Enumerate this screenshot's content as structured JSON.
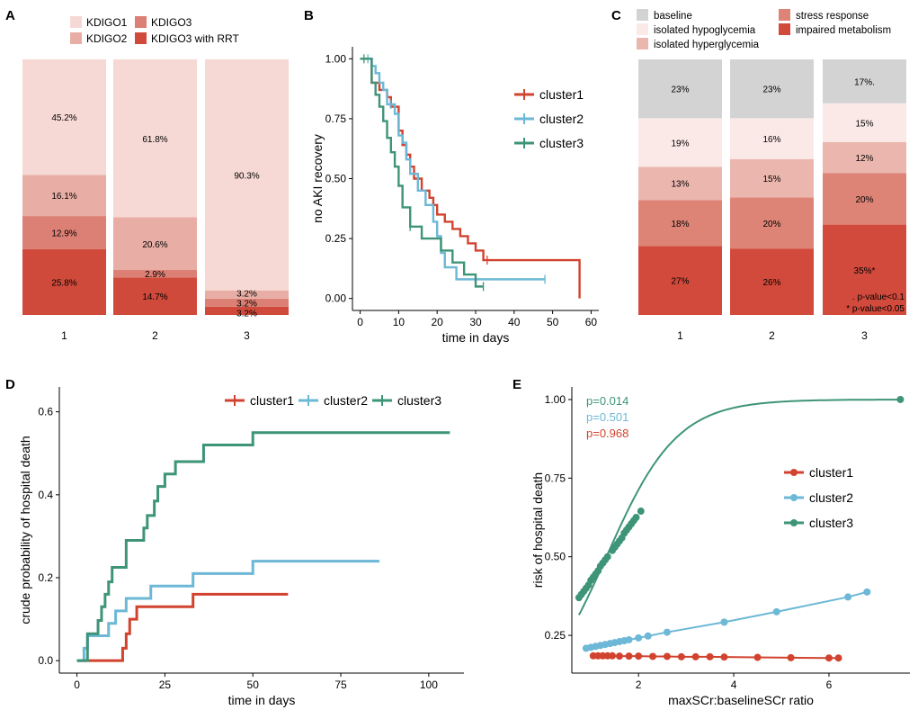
{
  "colors": {
    "kdigo1": "#f6d8d4",
    "kdigo2": "#e8aea5",
    "kdigo3": "#dc7f74",
    "kdigo3_rrt": "#d04a3b",
    "baseline": "#d3d3d3",
    "hypoglycemia": "#fbe9e7",
    "hyperglycemia": "#ebb6ae",
    "stress": "#dd8477",
    "impaired": "#d24a3b",
    "cluster1": "#d2432f",
    "cluster2": "#6cb8d6",
    "cluster3": "#3e9478"
  },
  "chart_data": [
    {
      "panel": "A",
      "type": "bar",
      "stacked": true,
      "categories": [
        "1",
        "2",
        "3"
      ],
      "series": [
        {
          "name": "KDIGO3 with RRT",
          "color_key": "kdigo3_rrt",
          "values": [
            25.8,
            14.7,
            3.2
          ],
          "labels": [
            "25.8%",
            "14.7%",
            "3.2%"
          ]
        },
        {
          "name": "KDIGO3",
          "color_key": "kdigo3",
          "values": [
            12.9,
            2.9,
            3.2
          ],
          "labels": [
            "12.9%",
            "2.9%",
            "3.2%"
          ]
        },
        {
          "name": "KDIGO2",
          "color_key": "kdigo2",
          "values": [
            16.1,
            20.6,
            3.2
          ],
          "labels": [
            "16.1%",
            "20.6%",
            "3.2%"
          ]
        },
        {
          "name": "KDIGO1",
          "color_key": "kdigo1",
          "values": [
            45.2,
            61.8,
            90.3
          ],
          "labels": [
            "45.2%",
            "61.8%",
            "90.3%"
          ]
        }
      ],
      "legend": [
        "KDIGO1",
        "KDIGO2",
        "KDIGO3",
        "KDIGO3 with RRT"
      ]
    },
    {
      "panel": "B",
      "type": "line",
      "step": true,
      "xlabel": "time in days",
      "ylabel": "no AKI recovery",
      "xlim": [
        -2,
        62
      ],
      "ylim": [
        -0.05,
        1.05
      ],
      "xticks": [
        0,
        10,
        20,
        30,
        40,
        50,
        60
      ],
      "yticks": [
        0,
        0.25,
        0.5,
        0.75,
        1.0
      ],
      "ytick_labels": [
        "0.00",
        "0.25",
        "0.50",
        "0.75",
        "1.00"
      ],
      "series": [
        {
          "name": "cluster1",
          "color_key": "cluster1",
          "x": [
            0,
            3,
            5,
            7,
            8,
            10,
            11,
            12,
            13,
            14,
            16,
            18,
            19,
            20,
            22,
            24,
            26,
            28,
            30,
            32,
            34,
            57,
            57
          ],
          "y": [
            1.0,
            0.9,
            0.87,
            0.84,
            0.8,
            0.7,
            0.64,
            0.6,
            0.55,
            0.5,
            0.45,
            0.42,
            0.39,
            0.35,
            0.32,
            0.29,
            0.26,
            0.23,
            0.2,
            0.16,
            0.16,
            0.16,
            0.0
          ],
          "censor": [
            33
          ]
        },
        {
          "name": "cluster2",
          "color_key": "cluster2",
          "x": [
            0,
            3,
            4,
            5,
            6,
            7,
            9,
            10,
            11,
            12,
            13,
            15,
            17,
            19,
            20,
            21,
            22,
            25,
            35,
            48
          ],
          "y": [
            1.0,
            0.97,
            0.94,
            0.9,
            0.87,
            0.81,
            0.77,
            0.68,
            0.65,
            0.58,
            0.52,
            0.45,
            0.39,
            0.32,
            0.26,
            0.19,
            0.13,
            0.08,
            0.08,
            0.08
          ],
          "censor": [
            2,
            8,
            48
          ]
        },
        {
          "name": "cluster3",
          "color_key": "cluster3",
          "x": [
            0,
            3,
            4,
            5,
            6,
            7,
            8,
            9,
            10,
            11,
            13,
            16,
            19,
            21,
            24,
            27,
            30,
            32
          ],
          "y": [
            1.0,
            0.9,
            0.85,
            0.8,
            0.74,
            0.67,
            0.61,
            0.55,
            0.47,
            0.38,
            0.3,
            0.25,
            0.25,
            0.2,
            0.15,
            0.1,
            0.05,
            0.05
          ],
          "censor": [
            1,
            13,
            32
          ]
        }
      ],
      "legend": [
        "cluster1",
        "cluster2",
        "cluster3"
      ]
    },
    {
      "panel": "C",
      "type": "bar",
      "stacked": true,
      "categories": [
        "1",
        "2",
        "3"
      ],
      "series": [
        {
          "name": "impaired metabolism",
          "color_key": "impaired",
          "values": [
            27,
            26,
            35
          ],
          "labels": [
            "27%",
            "26%",
            "35%*"
          ]
        },
        {
          "name": "stress response",
          "color_key": "stress",
          "values": [
            18,
            20,
            20
          ],
          "labels": [
            "18%",
            "20%",
            "20%"
          ]
        },
        {
          "name": "isolated hyperglycemia",
          "color_key": "hyperglycemia",
          "values": [
            13,
            15,
            12
          ],
          "labels": [
            "13%",
            "15%",
            "12%"
          ]
        },
        {
          "name": "isolated hypoglycemia",
          "color_key": "hypoglycemia",
          "values": [
            19,
            16,
            15
          ],
          "labels": [
            "19%",
            "16%",
            "15%"
          ]
        },
        {
          "name": "baseline",
          "color_key": "baseline",
          "values": [
            23,
            23,
            17
          ],
          "labels": [
            "23%",
            "23%",
            "17%."
          ]
        }
      ],
      "legend": [
        "baseline",
        "isolated hypoglycemia",
        "isolated hyperglycemia",
        "stress response",
        "impaired metabolism"
      ],
      "annotations": [
        ". p-value<0.1",
        "* p-value<0.05"
      ]
    },
    {
      "panel": "D",
      "type": "line",
      "step": true,
      "xlabel": "time in days",
      "ylabel": "crude probability of hospital death",
      "xlim": [
        -5,
        110
      ],
      "ylim": [
        -0.03,
        0.66
      ],
      "xticks": [
        0,
        25,
        50,
        75,
        100
      ],
      "yticks": [
        0,
        0.2,
        0.4,
        0.6
      ],
      "ytick_labels": [
        "0.0",
        "0.2",
        "0.4",
        "0.6"
      ],
      "series": [
        {
          "name": "cluster1",
          "color_key": "cluster1",
          "x": [
            0,
            13,
            14,
            15,
            17,
            33,
            60
          ],
          "y": [
            0,
            0.03,
            0.065,
            0.1,
            0.13,
            0.16,
            0.16
          ]
        },
        {
          "name": "cluster2",
          "color_key": "cluster2",
          "x": [
            0,
            2,
            3,
            5,
            9,
            11,
            14,
            21,
            33,
            50,
            86
          ],
          "y": [
            0,
            0.03,
            0.06,
            0.06,
            0.09,
            0.12,
            0.15,
            0.18,
            0.21,
            0.24,
            0.24
          ]
        },
        {
          "name": "cluster3",
          "color_key": "cluster3",
          "x": [
            0,
            3,
            5,
            6,
            7,
            8,
            9,
            10,
            11,
            14,
            18,
            19,
            20,
            21,
            22,
            23,
            24,
            25,
            26,
            28,
            36,
            50,
            58,
            106
          ],
          "y": [
            0,
            0.065,
            0.065,
            0.097,
            0.13,
            0.16,
            0.19,
            0.225,
            0.225,
            0.29,
            0.29,
            0.32,
            0.35,
            0.35,
            0.385,
            0.42,
            0.42,
            0.45,
            0.45,
            0.48,
            0.52,
            0.55,
            0.55,
            0.55
          ]
        }
      ],
      "legend": [
        "cluster1",
        "cluster2",
        "cluster3"
      ]
    },
    {
      "panel": "E",
      "type": "scatter",
      "xlabel": "maxSCr:baselineSCr ratio",
      "ylabel": "risk of hospital death",
      "xlim": [
        0.6,
        7.7
      ],
      "ylim": [
        0.13,
        1.04
      ],
      "xticks": [
        2,
        4,
        6
      ],
      "yticks": [
        0.25,
        0.5,
        0.75,
        1.0
      ],
      "ytick_labels": [
        "0.25",
        "0.50",
        "0.75",
        "1.00"
      ],
      "annotations": [
        "p=0.014",
        "p=0.501",
        "p=0.968"
      ],
      "series": [
        {
          "name": "cluster1",
          "color_key": "cluster1",
          "x": [
            1.05,
            1.15,
            1.25,
            1.35,
            1.45,
            1.6,
            1.8,
            2.0,
            2.3,
            2.6,
            2.9,
            3.2,
            3.5,
            3.8,
            4.5,
            5.2,
            6.0,
            6.2
          ],
          "y": [
            0.185,
            0.185,
            0.185,
            0.185,
            0.185,
            0.184,
            0.184,
            0.184,
            0.183,
            0.183,
            0.182,
            0.182,
            0.182,
            0.181,
            0.18,
            0.179,
            0.178,
            0.178
          ]
        },
        {
          "name": "cluster2",
          "color_key": "cluster2",
          "x": [
            0.9,
            1.0,
            1.1,
            1.2,
            1.3,
            1.4,
            1.5,
            1.6,
            1.7,
            1.8,
            2.0,
            2.2,
            2.6,
            3.8,
            4.9,
            6.4,
            6.8
          ],
          "y": [
            0.209,
            0.212,
            0.215,
            0.218,
            0.221,
            0.224,
            0.227,
            0.23,
            0.233,
            0.236,
            0.242,
            0.248,
            0.26,
            0.292,
            0.325,
            0.372,
            0.388
          ]
        },
        {
          "name": "cluster3",
          "color_key": "cluster3",
          "x": [
            0.75,
            0.8,
            0.85,
            0.9,
            0.95,
            1.0,
            1.05,
            1.1,
            1.15,
            1.2,
            1.25,
            1.3,
            1.35,
            1.45,
            1.5,
            1.55,
            1.6,
            1.65,
            1.7,
            1.75,
            1.8,
            1.85,
            1.9,
            1.95,
            2.05,
            7.5
          ],
          "y": [
            0.37,
            0.38,
            0.39,
            0.4,
            0.41,
            0.425,
            0.435,
            0.445,
            0.455,
            0.47,
            0.48,
            0.49,
            0.5,
            0.52,
            0.53,
            0.54,
            0.55,
            0.56,
            0.575,
            0.585,
            0.595,
            0.605,
            0.615,
            0.625,
            0.645,
            1.0
          ]
        }
      ],
      "legend": [
        "cluster1",
        "cluster2",
        "cluster3"
      ]
    }
  ]
}
